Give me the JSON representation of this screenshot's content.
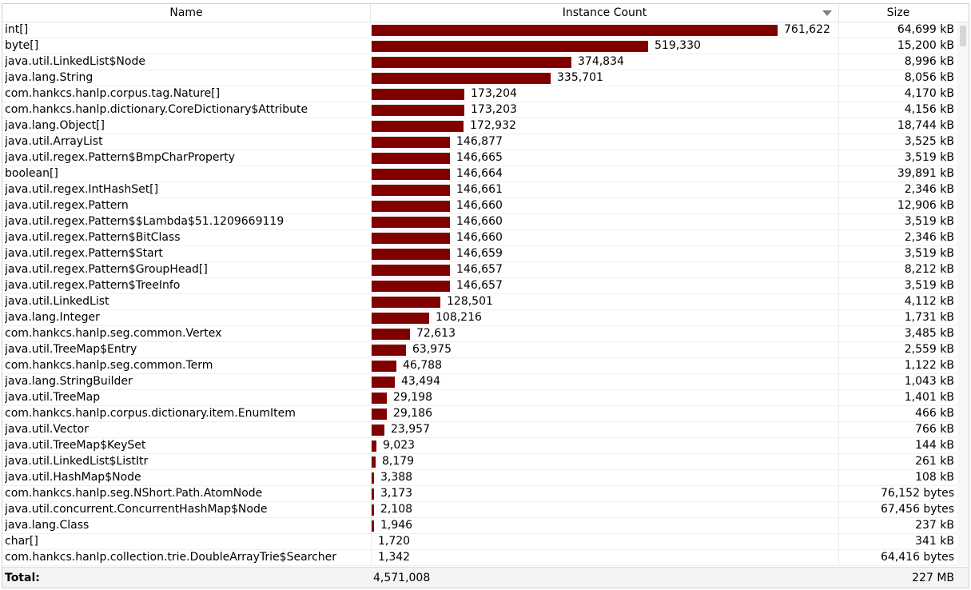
{
  "columns": {
    "name": "Name",
    "count": "Instance Count",
    "size": "Size"
  },
  "max_count": 761622,
  "bar_color": "#800000",
  "rows": [
    {
      "name": "int[]",
      "count": 761622,
      "count_label": "761,622",
      "size": "64,699 kB"
    },
    {
      "name": "byte[]",
      "count": 519330,
      "count_label": "519,330",
      "size": "15,200 kB"
    },
    {
      "name": "java.util.LinkedList$Node",
      "count": 374834,
      "count_label": "374,834",
      "size": "8,996 kB"
    },
    {
      "name": "java.lang.String",
      "count": 335701,
      "count_label": "335,701",
      "size": "8,056 kB"
    },
    {
      "name": "com.hankcs.hanlp.corpus.tag.Nature[]",
      "count": 173204,
      "count_label": "173,204",
      "size": "4,170 kB"
    },
    {
      "name": "com.hankcs.hanlp.dictionary.CoreDictionary$Attribute",
      "count": 173203,
      "count_label": "173,203",
      "size": "4,156 kB"
    },
    {
      "name": "java.lang.Object[]",
      "count": 172932,
      "count_label": "172,932",
      "size": "18,744 kB"
    },
    {
      "name": "java.util.ArrayList",
      "count": 146877,
      "count_label": "146,877",
      "size": "3,525 kB"
    },
    {
      "name": "java.util.regex.Pattern$BmpCharProperty",
      "count": 146665,
      "count_label": "146,665",
      "size": "3,519 kB"
    },
    {
      "name": "boolean[]",
      "count": 146664,
      "count_label": "146,664",
      "size": "39,891 kB"
    },
    {
      "name": "java.util.regex.IntHashSet[]",
      "count": 146661,
      "count_label": "146,661",
      "size": "2,346 kB"
    },
    {
      "name": "java.util.regex.Pattern",
      "count": 146660,
      "count_label": "146,660",
      "size": "12,906 kB"
    },
    {
      "name": "java.util.regex.Pattern$$Lambda$51.1209669119",
      "count": 146660,
      "count_label": "146,660",
      "size": "3,519 kB"
    },
    {
      "name": "java.util.regex.Pattern$BitClass",
      "count": 146660,
      "count_label": "146,660",
      "size": "2,346 kB"
    },
    {
      "name": "java.util.regex.Pattern$Start",
      "count": 146659,
      "count_label": "146,659",
      "size": "3,519 kB"
    },
    {
      "name": "java.util.regex.Pattern$GroupHead[]",
      "count": 146657,
      "count_label": "146,657",
      "size": "8,212 kB"
    },
    {
      "name": "java.util.regex.Pattern$TreeInfo",
      "count": 146657,
      "count_label": "146,657",
      "size": "3,519 kB"
    },
    {
      "name": "java.util.LinkedList",
      "count": 128501,
      "count_label": "128,501",
      "size": "4,112 kB"
    },
    {
      "name": "java.lang.Integer",
      "count": 108216,
      "count_label": "108,216",
      "size": "1,731 kB"
    },
    {
      "name": "com.hankcs.hanlp.seg.common.Vertex",
      "count": 72613,
      "count_label": "72,613",
      "size": "3,485 kB"
    },
    {
      "name": "java.util.TreeMap$Entry",
      "count": 63975,
      "count_label": "63,975",
      "size": "2,559 kB"
    },
    {
      "name": "com.hankcs.hanlp.seg.common.Term",
      "count": 46788,
      "count_label": "46,788",
      "size": "1,122 kB"
    },
    {
      "name": "java.lang.StringBuilder",
      "count": 43494,
      "count_label": "43,494",
      "size": "1,043 kB"
    },
    {
      "name": "java.util.TreeMap",
      "count": 29198,
      "count_label": "29,198",
      "size": "1,401 kB"
    },
    {
      "name": "com.hankcs.hanlp.corpus.dictionary.item.EnumItem",
      "count": 29186,
      "count_label": "29,186",
      "size": "466 kB"
    },
    {
      "name": "java.util.Vector",
      "count": 23957,
      "count_label": "23,957",
      "size": "766 kB"
    },
    {
      "name": "java.util.TreeMap$KeySet",
      "count": 9023,
      "count_label": "9,023",
      "size": "144 kB"
    },
    {
      "name": "java.util.LinkedList$ListItr",
      "count": 8179,
      "count_label": "8,179",
      "size": "261 kB"
    },
    {
      "name": "java.util.HashMap$Node",
      "count": 3388,
      "count_label": "3,388",
      "size": "108 kB"
    },
    {
      "name": "com.hankcs.hanlp.seg.NShort.Path.AtomNode",
      "count": 3173,
      "count_label": "3,173",
      "size": "76,152 bytes"
    },
    {
      "name": "java.util.concurrent.ConcurrentHashMap$Node",
      "count": 2108,
      "count_label": "2,108",
      "size": "67,456 bytes"
    },
    {
      "name": "java.lang.Class",
      "count": 1946,
      "count_label": "1,946",
      "size": "237 kB"
    },
    {
      "name": "char[]",
      "count": 1720,
      "count_label": "1,720",
      "size": "341 kB"
    },
    {
      "name": "com.hankcs.hanlp.collection.trie.DoubleArrayTrie$Searcher",
      "count": 1342,
      "count_label": "1,342",
      "size": "64,416 bytes"
    }
  ],
  "footer": {
    "label": "Total:",
    "count": "4,571,008",
    "size": "227 MB"
  }
}
